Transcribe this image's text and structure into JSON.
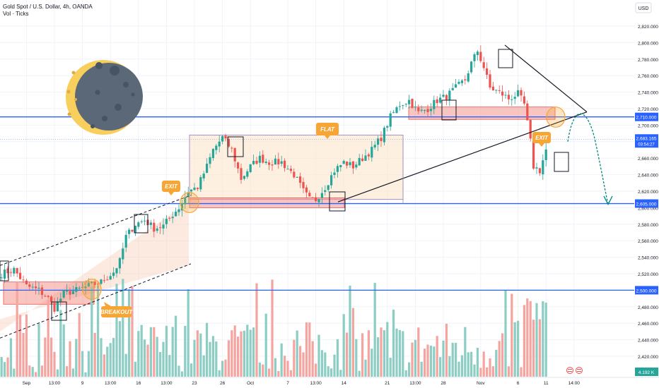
{
  "header": {
    "symbol_line": "Gold Spot / U.S. Dollar, 4h, OANDA",
    "indicator_line": "Vol · Ticks"
  },
  "currency_button": "USD",
  "colors": {
    "bull": "#26a69a",
    "bear": "#ef5350",
    "vol_bull": "#8ccdc4",
    "vol_bear": "#f5a4a0",
    "level_line": "#2962ff",
    "orange": "#f7a534",
    "moon_dark": "#5a6877",
    "moon_light": "#f8cf5c"
  },
  "chart_data": {
    "type": "candlestick",
    "ylim": [
      2400,
      2830
    ],
    "y_ticks": [
      2420,
      2440,
      2460,
      2480,
      2500,
      2520,
      2540,
      2560,
      2580,
      2600,
      2620,
      2640,
      2660,
      2680,
      2700,
      2720,
      2740,
      2760,
      2780,
      2800,
      2820
    ],
    "x_ticks": [
      "Sep",
      "13:00",
      "9",
      "13:00",
      "16",
      "13:00",
      "23",
      "26",
      "Oct",
      "7",
      "13:00",
      "14",
      "21",
      "13:00",
      "28",
      "Nov",
      "6",
      "11",
      "14:00"
    ],
    "x_tick_index": [
      8,
      17,
      26,
      35,
      44,
      53,
      62,
      71,
      80,
      92,
      101,
      110,
      124,
      133,
      142,
      154,
      166,
      175,
      184
    ],
    "price_path": [
      [
        0,
        2520
      ],
      [
        4,
        2525
      ],
      [
        8,
        2505
      ],
      [
        12,
        2500
      ],
      [
        15,
        2490
      ],
      [
        17,
        2478
      ],
      [
        20,
        2496
      ],
      [
        24,
        2500
      ],
      [
        28,
        2505
      ],
      [
        32,
        2510
      ],
      [
        36,
        2522
      ],
      [
        38,
        2535
      ],
      [
        40,
        2565
      ],
      [
        43,
        2580
      ],
      [
        46,
        2585
      ],
      [
        49,
        2575
      ],
      [
        52,
        2578
      ],
      [
        55,
        2592
      ],
      [
        57,
        2600
      ],
      [
        60,
        2620
      ],
      [
        63,
        2625
      ],
      [
        66,
        2650
      ],
      [
        68,
        2670
      ],
      [
        71,
        2685
      ],
      [
        74,
        2670
      ],
      [
        77,
        2635
      ],
      [
        80,
        2650
      ],
      [
        83,
        2660
      ],
      [
        86,
        2655
      ],
      [
        90,
        2655
      ],
      [
        94,
        2640
      ],
      [
        97,
        2620
      ],
      [
        99,
        2610
      ],
      [
        101,
        2610
      ],
      [
        104,
        2625
      ],
      [
        107,
        2645
      ],
      [
        110,
        2655
      ],
      [
        113,
        2650
      ],
      [
        116,
        2660
      ],
      [
        119,
        2670
      ],
      [
        122,
        2685
      ],
      [
        125,
        2710
      ],
      [
        128,
        2725
      ],
      [
        131,
        2730
      ],
      [
        134,
        2715
      ],
      [
        137,
        2720
      ],
      [
        140,
        2730
      ],
      [
        143,
        2735
      ],
      [
        146,
        2745
      ],
      [
        149,
        2755
      ],
      [
        151,
        2775
      ],
      [
        153,
        2790
      ],
      [
        155,
        2770
      ],
      [
        157,
        2745
      ],
      [
        160,
        2740
      ],
      [
        163,
        2732
      ],
      [
        166,
        2738
      ],
      [
        168,
        2725
      ],
      [
        170,
        2680
      ],
      [
        171,
        2650
      ],
      [
        173,
        2645
      ],
      [
        175,
        2670
      ]
    ],
    "volume_range": [
      40,
      950
    ],
    "levels": [
      {
        "price": 2710.0,
        "label": "2,710.000"
      },
      {
        "price": 2605.0,
        "label": "2,605.000"
      },
      {
        "price": 2500.0,
        "label": "2,500.000"
      }
    ],
    "current_price": {
      "label": "2,683.165",
      "countdown": "03:54:27"
    },
    "volume_label": "4.192 K",
    "annotations": {
      "exit_1": "EXIT",
      "flat": "FLAT",
      "breakout": "BREAKOUT",
      "exit_2": "EXIT"
    }
  }
}
